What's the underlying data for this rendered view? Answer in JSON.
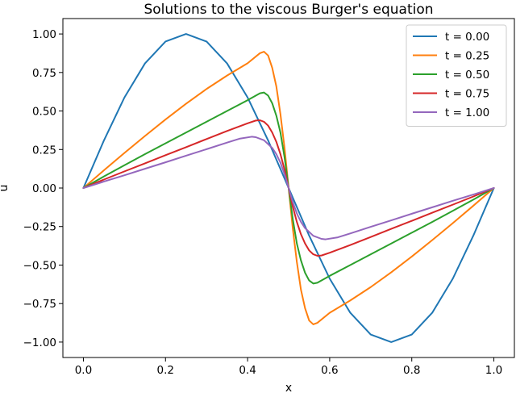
{
  "chart_data": {
    "type": "line",
    "title": "Solutions to the viscous Burger's equation",
    "xlabel": "x",
    "ylabel": "u",
    "xlim": [
      -0.05,
      1.05
    ],
    "ylim": [
      -1.1,
      1.1
    ],
    "xticks": [
      0.0,
      0.2,
      0.4,
      0.6,
      0.8,
      1.0
    ],
    "xtick_labels": [
      "0.0",
      "0.2",
      "0.4",
      "0.6",
      "0.8",
      "1.0"
    ],
    "yticks": [
      1.0,
      0.75,
      0.5,
      0.25,
      0.0,
      -0.25,
      -0.5,
      -0.75,
      -1.0
    ],
    "ytick_labels": [
      "1.00",
      "0.75",
      "0.50",
      "0.25",
      "0.00",
      "−0.25",
      "−0.50",
      "−0.75",
      "−1.00"
    ],
    "grid": false,
    "legend_position": "top-right",
    "series": [
      {
        "name": "t = 0.00",
        "color": "#1f77b4",
        "x": [
          0.0,
          0.05,
          0.1,
          0.15,
          0.2,
          0.25,
          0.3,
          0.35,
          0.4,
          0.45,
          0.5,
          0.55,
          0.6,
          0.65,
          0.7,
          0.75,
          0.8,
          0.85,
          0.9,
          0.95,
          1.0
        ],
        "y": [
          0.0,
          0.309,
          0.588,
          0.809,
          0.951,
          1.0,
          0.951,
          0.809,
          0.588,
          0.309,
          0.0,
          -0.309,
          -0.588,
          -0.809,
          -0.951,
          -1.0,
          -0.951,
          -0.809,
          -0.588,
          -0.309,
          0.0
        ]
      },
      {
        "name": "t = 0.25",
        "color": "#ff7f0e",
        "x": [
          0.0,
          0.05,
          0.1,
          0.15,
          0.2,
          0.25,
          0.3,
          0.35,
          0.4,
          0.43,
          0.44,
          0.45,
          0.46,
          0.47,
          0.48,
          0.49,
          0.5,
          0.51,
          0.52,
          0.53,
          0.54,
          0.55,
          0.56,
          0.57,
          0.6,
          0.65,
          0.7,
          0.75,
          0.8,
          0.85,
          0.9,
          0.95,
          1.0
        ],
        "y": [
          0.0,
          0.115,
          0.228,
          0.338,
          0.445,
          0.547,
          0.643,
          0.73,
          0.81,
          0.875,
          0.885,
          0.86,
          0.78,
          0.66,
          0.48,
          0.26,
          0.0,
          -0.26,
          -0.48,
          -0.66,
          -0.78,
          -0.86,
          -0.885,
          -0.875,
          -0.81,
          -0.73,
          -0.643,
          -0.547,
          -0.445,
          -0.338,
          -0.228,
          -0.115,
          0.0
        ]
      },
      {
        "name": "t = 0.50",
        "color": "#2ca02c",
        "x": [
          0.0,
          0.05,
          0.1,
          0.15,
          0.2,
          0.25,
          0.3,
          0.35,
          0.4,
          0.43,
          0.44,
          0.45,
          0.46,
          0.47,
          0.48,
          0.49,
          0.5,
          0.51,
          0.52,
          0.53,
          0.54,
          0.55,
          0.56,
          0.57,
          0.6,
          0.65,
          0.7,
          0.75,
          0.8,
          0.85,
          0.9,
          0.95,
          1.0
        ],
        "y": [
          0.0,
          0.075,
          0.148,
          0.22,
          0.29,
          0.36,
          0.43,
          0.5,
          0.57,
          0.615,
          0.62,
          0.6,
          0.55,
          0.47,
          0.36,
          0.2,
          0.0,
          -0.2,
          -0.36,
          -0.47,
          -0.55,
          -0.6,
          -0.62,
          -0.615,
          -0.57,
          -0.5,
          -0.43,
          -0.36,
          -0.29,
          -0.22,
          -0.148,
          -0.075,
          0.0
        ]
      },
      {
        "name": "t = 0.75",
        "color": "#d62728",
        "x": [
          0.0,
          0.05,
          0.1,
          0.15,
          0.2,
          0.25,
          0.3,
          0.35,
          0.4,
          0.42,
          0.43,
          0.44,
          0.45,
          0.46,
          0.47,
          0.48,
          0.49,
          0.5,
          0.51,
          0.52,
          0.53,
          0.54,
          0.55,
          0.56,
          0.57,
          0.58,
          0.6,
          0.65,
          0.7,
          0.75,
          0.8,
          0.85,
          0.9,
          0.95,
          1.0
        ],
        "y": [
          0.0,
          0.055,
          0.108,
          0.16,
          0.213,
          0.265,
          0.318,
          0.37,
          0.42,
          0.438,
          0.44,
          0.43,
          0.405,
          0.36,
          0.3,
          0.22,
          0.12,
          0.0,
          -0.12,
          -0.22,
          -0.3,
          -0.36,
          -0.405,
          -0.43,
          -0.44,
          -0.438,
          -0.42,
          -0.37,
          -0.318,
          -0.265,
          -0.213,
          -0.16,
          -0.108,
          -0.055,
          0.0
        ]
      },
      {
        "name": "t = 1.00",
        "color": "#9467bd",
        "x": [
          0.0,
          0.05,
          0.1,
          0.15,
          0.2,
          0.25,
          0.3,
          0.35,
          0.38,
          0.41,
          0.42,
          0.44,
          0.46,
          0.47,
          0.48,
          0.49,
          0.5,
          0.51,
          0.52,
          0.53,
          0.54,
          0.56,
          0.58,
          0.59,
          0.62,
          0.65,
          0.7,
          0.75,
          0.8,
          0.85,
          0.9,
          0.95,
          1.0
        ],
        "y": [
          0.0,
          0.042,
          0.083,
          0.125,
          0.167,
          0.21,
          0.252,
          0.295,
          0.32,
          0.333,
          0.33,
          0.31,
          0.26,
          0.22,
          0.165,
          0.09,
          0.0,
          -0.09,
          -0.165,
          -0.22,
          -0.26,
          -0.31,
          -0.33,
          -0.333,
          -0.32,
          -0.295,
          -0.252,
          -0.21,
          -0.167,
          -0.125,
          -0.083,
          -0.042,
          0.0
        ]
      }
    ]
  }
}
